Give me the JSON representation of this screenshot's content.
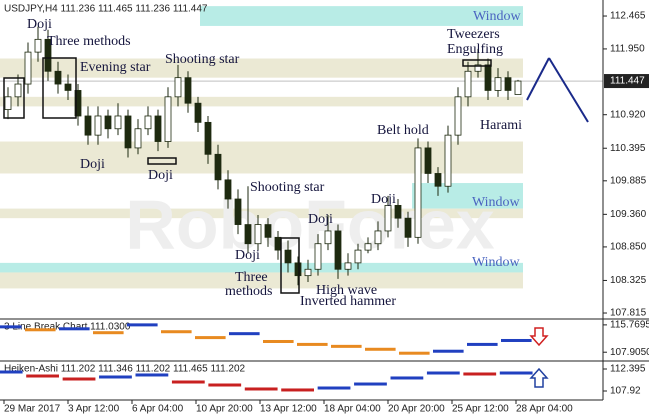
{
  "chart_data": {
    "type": "candlestick",
    "header": "USDJPY,H4  111.236 111.465 111.236 111.447",
    "watermark": "RoboForex",
    "open": [
      111.0,
      111.2,
      111.4,
      111.9,
      112.1,
      111.6,
      111.4,
      111.3,
      110.9,
      110.6,
      110.9,
      110.7,
      110.9,
      110.4,
      110.7,
      110.9,
      110.5,
      111.2,
      111.5,
      111.1,
      110.8,
      110.3,
      109.9,
      109.6,
      109.2,
      108.9,
      109.2,
      109.0,
      108.8,
      108.6,
      108.4,
      108.5,
      108.9,
      109.1,
      108.5,
      108.6,
      108.8,
      108.9,
      109.1,
      109.5,
      109.3,
      109.0,
      110.4,
      110.0,
      109.8,
      110.6,
      111.2,
      111.6,
      111.7,
      111.3,
      111.5,
      111.236
    ],
    "high": [
      111.35,
      111.55,
      112.05,
      112.3,
      112.25,
      111.75,
      111.55,
      111.4,
      111.05,
      111.05,
      111.0,
      111.1,
      111.0,
      110.85,
      111.05,
      111.0,
      111.35,
      111.7,
      111.6,
      111.2,
      110.9,
      110.45,
      110.05,
      109.75,
      109.8,
      109.35,
      109.3,
      109.1,
      108.95,
      108.7,
      108.65,
      109.05,
      109.35,
      109.2,
      108.75,
      108.9,
      109.0,
      109.25,
      109.65,
      109.6,
      109.4,
      110.55,
      110.5,
      110.1,
      110.75,
      111.35,
      111.75,
      111.95,
      111.8,
      111.65,
      111.6,
      111.465
    ],
    "low": [
      110.85,
      111.05,
      111.25,
      111.75,
      111.45,
      111.25,
      111.15,
      110.75,
      110.45,
      110.45,
      110.55,
      110.6,
      110.25,
      110.3,
      110.6,
      110.35,
      110.4,
      111.05,
      110.95,
      110.65,
      110.15,
      109.75,
      109.45,
      109.05,
      108.75,
      108.8,
      108.85,
      108.65,
      108.45,
      108.25,
      108.3,
      108.4,
      108.8,
      108.35,
      108.4,
      108.5,
      108.75,
      108.8,
      109.0,
      109.15,
      108.85,
      108.9,
      109.85,
      109.65,
      109.7,
      110.45,
      111.05,
      111.5,
      111.15,
      111.2,
      111.15,
      111.236
    ],
    "close": [
      111.2,
      111.4,
      111.9,
      112.1,
      111.6,
      111.4,
      111.3,
      110.9,
      110.6,
      110.9,
      110.7,
      110.9,
      110.4,
      110.7,
      110.9,
      110.5,
      111.2,
      111.5,
      111.1,
      110.8,
      110.3,
      109.9,
      109.6,
      109.2,
      108.9,
      109.2,
      109.0,
      108.8,
      108.6,
      108.4,
      108.5,
      108.9,
      109.1,
      108.5,
      108.6,
      108.8,
      108.9,
      109.1,
      109.5,
      109.3,
      109.0,
      110.4,
      110.0,
      109.8,
      110.6,
      111.2,
      111.6,
      111.7,
      111.3,
      111.5,
      111.3,
      111.447
    ],
    "colors": {
      "up": "#ffffff",
      "down": "#1e2a10",
      "wick": "#1e2a10"
    },
    "ylim": [
      107.737,
      112.716
    ],
    "yticks": [
      112.465,
      {
        "value": 111.95,
        "label": "111.950"
      },
      {
        "value": 110.92,
        "label": "110.920"
      },
      110.395,
      109.885,
      {
        "value": 109.36,
        "label": "109.360"
      },
      {
        "value": 108.85,
        "label": "108.850"
      },
      108.325,
      107.815
    ],
    "current_price": 111.447,
    "time_labels": [
      "29 Mar 2017",
      "3 Apr 12:00",
      "6 Apr 04:00",
      "10 Apr 20:00",
      "13 Apr 12:00",
      "18 Apr 04:00",
      "20 Apr 20:00",
      "25 Apr 12:00",
      "28 Apr 04:00"
    ],
    "zones": [
      {
        "from": 112.31,
        "to": 112.62,
        "color": "#b8ece6"
      },
      {
        "from": 111.5,
        "to": 111.8,
        "color": "#ebe9d4"
      },
      {
        "from": 111.05,
        "to": 111.2,
        "color": "#ebe9d4"
      },
      {
        "from": 110.0,
        "to": 110.5,
        "color": "#ebe9d4"
      },
      {
        "from": 109.45,
        "to": 109.85,
        "color": "#b8ece6"
      },
      {
        "from": 109.3,
        "to": 109.45,
        "color": "#ebe9d4"
      },
      {
        "from": 108.45,
        "to": 108.6,
        "color": "#b8ece6"
      },
      {
        "from": 108.2,
        "to": 108.45,
        "color": "#ebe9d4"
      }
    ],
    "annotations": [
      "Doji",
      "Three  methods",
      "Evening star",
      "Shooting star",
      "Doji",
      "Doji",
      "Shooting star",
      "Doji",
      "Doji",
      "Three",
      "methods",
      "High wave",
      "Inverted hammer",
      "Doji",
      "Belt hold",
      "Tweezers",
      "Engulfing",
      "Harami",
      "Window",
      "Window",
      "Window"
    ],
    "indicators": [
      {
        "type": "line_break",
        "title": "3 Line Break Chart 111.0300",
        "up_color": "#2040c0",
        "down_color": "#e88a20",
        "values": [
          115.2,
          114.36,
          114.64,
          113.52,
          115.77,
          113.8,
          112.11,
          113.24,
          110.99,
          110.15,
          109.59,
          108.75,
          107.62,
          108.19,
          110.15,
          111.28
        ],
        "ylim": [
          105.377,
          117.174
        ],
        "yticks": [
          115.7695,
          {
            "value": 107.905,
            "label": "107.9050"
          }
        ]
      },
      {
        "type": "heiken_ashi",
        "title": "Heiken-Ashi 111.202 111.346 111.202 111.465 111.202",
        "up_color": "#2040c0",
        "down_color": "#c82020",
        "values": [
          111.785,
          110.97,
          110.36,
          110.77,
          111.18,
          109.75,
          109.14,
          108.33,
          108.13,
          108.53,
          109.34,
          110.57,
          111.58,
          111.38,
          111.58
        ],
        "ylim": [
          106.09,
          113.819
        ],
        "yticks": [
          112.395,
          107.92
        ]
      }
    ]
  }
}
